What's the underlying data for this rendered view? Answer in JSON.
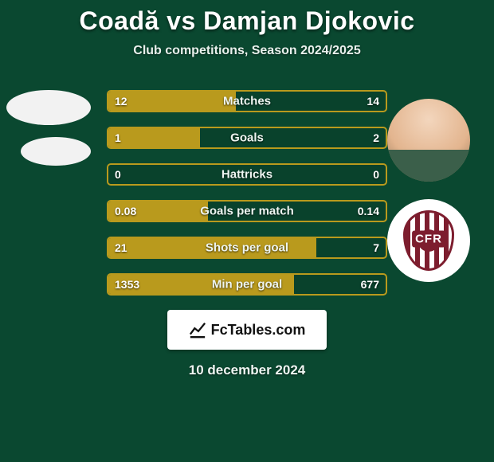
{
  "title": "Coadă vs Damjan Djokovic",
  "subtitle": "Club competitions, Season 2024/2025",
  "date": "10 december 2024",
  "badge": {
    "text": "FcTables.com"
  },
  "colors": {
    "background": "#0a4830",
    "bar_border": "#b99a1d",
    "bar_fill": "#b99a1d",
    "text": "#ffffff"
  },
  "bars": [
    {
      "label": "Matches",
      "left": "12",
      "right": "14",
      "fill_pct": 46
    },
    {
      "label": "Goals",
      "left": "1",
      "right": "2",
      "fill_pct": 33
    },
    {
      "label": "Hattricks",
      "left": "0",
      "right": "0",
      "fill_pct": 0
    },
    {
      "label": "Goals per match",
      "left": "0.08",
      "right": "0.14",
      "fill_pct": 36
    },
    {
      "label": "Shots per goal",
      "left": "21",
      "right": "7",
      "fill_pct": 75
    },
    {
      "label": "Min per goal",
      "left": "1353",
      "right": "677",
      "fill_pct": 67
    }
  ]
}
